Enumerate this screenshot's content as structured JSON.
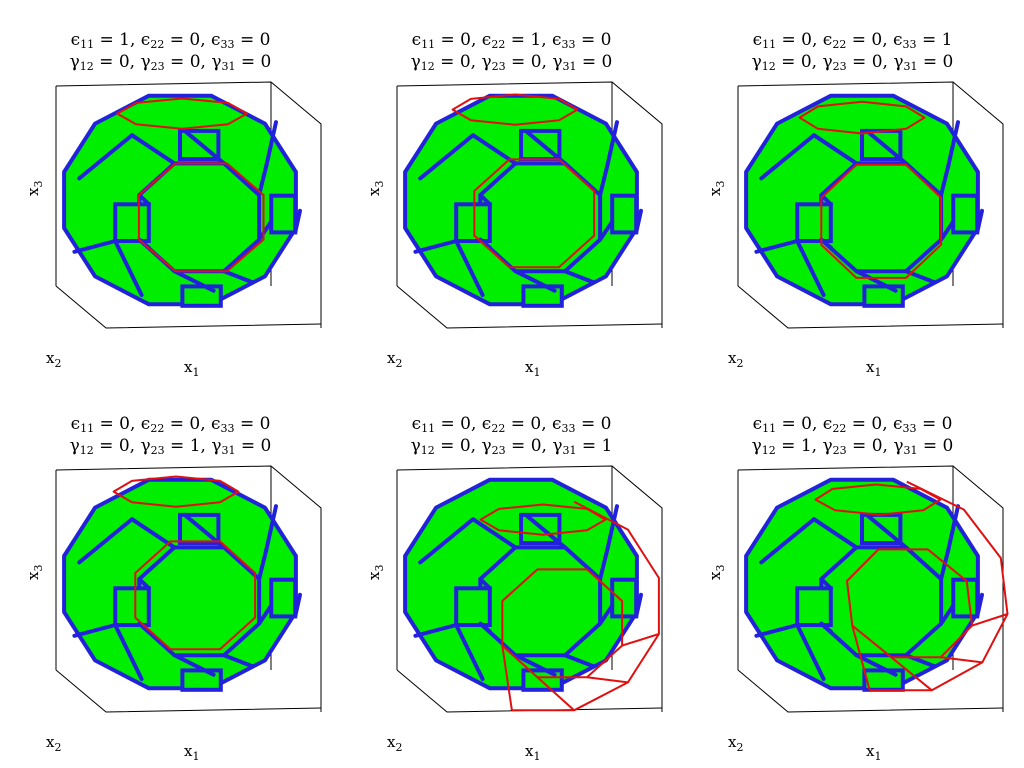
{
  "panels": [
    {
      "line1": [
        "1",
        "0",
        "0"
      ],
      "line2": [
        "0",
        "0",
        "0"
      ],
      "axis_labels": {
        "x1": "x",
        "x2": "x",
        "x3": "x"
      },
      "deformed_edge": "minus-x1",
      "deformation_mode": "eps11"
    },
    {
      "line1": [
        "0",
        "1",
        "0"
      ],
      "line2": [
        "0",
        "0",
        "0"
      ],
      "axis_labels": {
        "x1": "x",
        "x2": "x",
        "x3": "x"
      },
      "deformation_mode": "eps22"
    },
    {
      "line1": [
        "0",
        "0",
        "1"
      ],
      "line2": [
        "0",
        "0",
        "0"
      ],
      "axis_labels": {
        "x1": "x",
        "x2": "x",
        "x3": "x"
      },
      "deformation_mode": "eps33"
    },
    {
      "line1": [
        "0",
        "0",
        "0"
      ],
      "line2": [
        "0",
        "1",
        "0"
      ],
      "axis_labels": {
        "x1": "x",
        "x2": "x",
        "x3": "x"
      },
      "deformation_mode": "gam23"
    },
    {
      "line1": [
        "0",
        "0",
        "0"
      ],
      "line2": [
        "0",
        "0",
        "1"
      ],
      "axis_labels": {
        "x1": "x",
        "x2": "x",
        "x3": "x"
      },
      "deformation_mode": "gam31"
    },
    {
      "line1": [
        "0",
        "0",
        "0"
      ],
      "line2": [
        "1",
        "0",
        "0"
      ],
      "axis_labels": {
        "x1": "x",
        "x2": "x",
        "x3": "x"
      },
      "deformation_mode": "gam12"
    }
  ],
  "symbols": {
    "eps": "ϵ",
    "gam": "γ",
    "sub11": "11",
    "sub22": "22",
    "sub33": "33",
    "sub12": "12",
    "sub23": "23",
    "sub31": "31",
    "ax1": "1",
    "ax2": "2",
    "ax3": "3"
  },
  "colors": {
    "face": "#00ee00",
    "edge": "#2222dd",
    "deformed": "#e01010",
    "box": "#000000"
  }
}
